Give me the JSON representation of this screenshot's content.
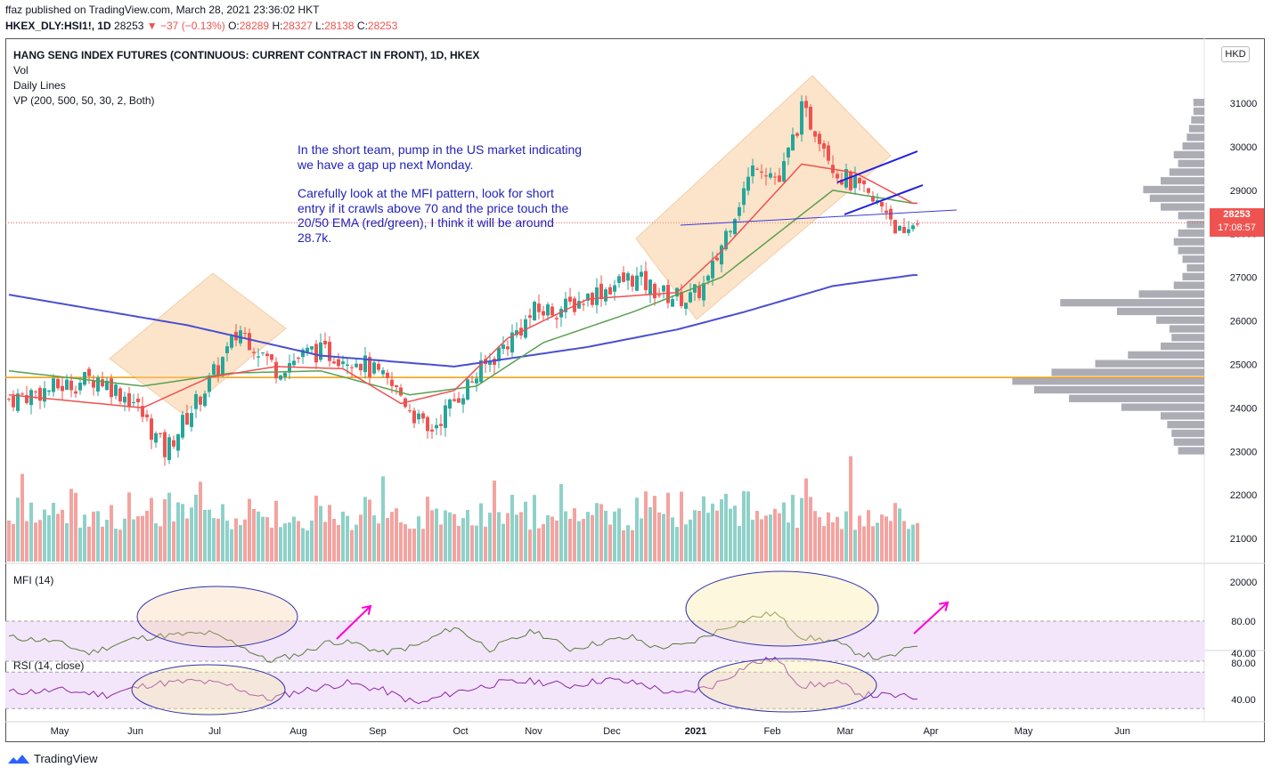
{
  "header": {
    "published": "ffaz published on TradingView.com, March 28, 2021 23:36:02 HKT",
    "symbol": "HKEX_DLY:HSI1!, 1D",
    "last": "28253",
    "change": "−37 (−0.13%)",
    "open_label": "O:",
    "open": "28289",
    "high_label": "H:",
    "high": "28327",
    "low_label": "L:",
    "low": "28138",
    "close_label": "C:",
    "close": "28253"
  },
  "legend": {
    "title": "HANG SENG INDEX FUTURES (CONTINUOUS: CURRENT CONTRACT IN FRONT), 1D, HKEX",
    "vol": "Vol",
    "lines": "Daily Lines",
    "vp": "VP (200, 500, 50, 30, 2, Both)"
  },
  "annotation": {
    "p1": "In the short team, pump in the US market indicating we have a gap up next Monday.",
    "p2": "Carefully look at the MFI pattern, look for short entry if it crawls above 70 and the price touch the 20/50 EMA (red/green), I think it will be around 28.7k."
  },
  "currency": "HKD",
  "price_label": {
    "price": "28253",
    "countdown": "17:08:57"
  },
  "colors": {
    "up": "#26a69a",
    "down": "#ef5350",
    "ema20": "#f05050",
    "ema50": "#5aa050",
    "ema200": "#4a4fd0",
    "poc": "#f79a00",
    "annot": "#2323b8"
  },
  "footer": {
    "brand": "TradingView"
  },
  "chart_data": [
    {
      "type": "candlestick",
      "title": "HANG SENG INDEX FUTURES (CONTINUOUS: CURRENT CONTRACT IN FRONT), 1D, HKEX",
      "ylim": [
        20000,
        32000
      ],
      "y_ticks": [
        20000,
        21000,
        22000,
        23000,
        24000,
        25000,
        26000,
        27000,
        28000,
        29000,
        30000,
        31000,
        32000
      ],
      "x_ticks": [
        "May",
        "Jun",
        "Jul",
        "Aug",
        "Sep",
        "Oct",
        "Nov",
        "Dec",
        "2021",
        "Feb",
        "Mar",
        "Apr",
        "May",
        "Jun"
      ],
      "close_path": [
        [
          0,
          24200
        ],
        [
          10,
          24450
        ],
        [
          20,
          24700
        ],
        [
          28,
          24150
        ],
        [
          35,
          23000
        ],
        [
          45,
          24600
        ],
        [
          52,
          25800
        ],
        [
          60,
          24900
        ],
        [
          68,
          25300
        ],
        [
          78,
          25150
        ],
        [
          88,
          24300
        ],
        [
          94,
          23400
        ],
        [
          101,
          24300
        ],
        [
          110,
          25300
        ],
        [
          118,
          26200
        ],
        [
          125,
          26300
        ],
        [
          133,
          26700
        ],
        [
          140,
          27000
        ],
        [
          147,
          26600
        ],
        [
          153,
          26500
        ],
        [
          157,
          26900
        ],
        [
          162,
          28300
        ],
        [
          168,
          29700
        ],
        [
          173,
          29200
        ],
        [
          178,
          30800
        ],
        [
          182,
          30300
        ],
        [
          186,
          29400
        ],
        [
          190,
          29100
        ],
        [
          194,
          28700
        ],
        [
          197,
          28600
        ],
        [
          201,
          27800
        ],
        [
          203,
          28253
        ]
      ],
      "ema20_path": [
        [
          0,
          24300
        ],
        [
          30,
          24000
        ],
        [
          45,
          24700
        ],
        [
          60,
          24950
        ],
        [
          75,
          24900
        ],
        [
          88,
          24100
        ],
        [
          100,
          24400
        ],
        [
          112,
          25600
        ],
        [
          130,
          26500
        ],
        [
          150,
          26650
        ],
        [
          160,
          27600
        ],
        [
          178,
          29600
        ],
        [
          190,
          29400
        ],
        [
          203,
          28700
        ]
      ],
      "ema50_path": [
        [
          0,
          24850
        ],
        [
          30,
          24500
        ],
        [
          50,
          24800
        ],
        [
          70,
          24850
        ],
        [
          90,
          24300
        ],
        [
          105,
          24500
        ],
        [
          120,
          25500
        ],
        [
          140,
          26200
        ],
        [
          160,
          27000
        ],
        [
          185,
          29000
        ],
        [
          203,
          28700
        ]
      ],
      "ema200_path": [
        [
          0,
          26600
        ],
        [
          40,
          25900
        ],
        [
          70,
          25200
        ],
        [
          100,
          24950
        ],
        [
          130,
          25400
        ],
        [
          150,
          25800
        ],
        [
          165,
          26200
        ],
        [
          185,
          26800
        ],
        [
          203,
          27050
        ]
      ],
      "poc": 24700,
      "volume_profile": [
        [
          23000,
          0.12
        ],
        [
          23200,
          0.14
        ],
        [
          23400,
          0.15
        ],
        [
          23600,
          0.17
        ],
        [
          23800,
          0.2
        ],
        [
          24000,
          0.38
        ],
        [
          24200,
          0.62
        ],
        [
          24400,
          0.78
        ],
        [
          24600,
          0.88
        ],
        [
          24800,
          0.7
        ],
        [
          25000,
          0.5
        ],
        [
          25200,
          0.35
        ],
        [
          25400,
          0.2
        ],
        [
          25600,
          0.15
        ],
        [
          25800,
          0.16
        ],
        [
          26000,
          0.22
        ],
        [
          26200,
          0.4
        ],
        [
          26400,
          0.66
        ],
        [
          26600,
          0.3
        ],
        [
          26800,
          0.14
        ],
        [
          27000,
          0.1
        ],
        [
          27200,
          0.08
        ],
        [
          27400,
          0.1
        ],
        [
          27600,
          0.12
        ],
        [
          27800,
          0.14
        ],
        [
          28000,
          0.12
        ],
        [
          28200,
          0.08
        ],
        [
          28400,
          0.12
        ],
        [
          28600,
          0.2
        ],
        [
          28800,
          0.25
        ],
        [
          29000,
          0.28
        ],
        [
          29200,
          0.2
        ],
        [
          29400,
          0.16
        ],
        [
          29600,
          0.12
        ],
        [
          29800,
          0.14
        ],
        [
          30000,
          0.1
        ],
        [
          30200,
          0.08
        ],
        [
          30400,
          0.07
        ],
        [
          30600,
          0.06
        ],
        [
          30800,
          0.05
        ],
        [
          31000,
          0.05
        ]
      ],
      "last_price": 28253
    },
    {
      "type": "line",
      "title": "MFI (14)",
      "ylim": [
        20,
        100
      ],
      "y_ticks": [
        40,
        80
      ],
      "bands": [
        30,
        80
      ],
      "values_path": [
        [
          0,
          60
        ],
        [
          10,
          55
        ],
        [
          18,
          40
        ],
        [
          28,
          58
        ],
        [
          35,
          62
        ],
        [
          45,
          65
        ],
        [
          52,
          50
        ],
        [
          58,
          30
        ],
        [
          66,
          40
        ],
        [
          72,
          55
        ],
        [
          78,
          52
        ],
        [
          84,
          40
        ],
        [
          92,
          50
        ],
        [
          100,
          73
        ],
        [
          108,
          45
        ],
        [
          118,
          68
        ],
        [
          126,
          45
        ],
        [
          134,
          55
        ],
        [
          140,
          60
        ],
        [
          145,
          47
        ],
        [
          152,
          50
        ],
        [
          162,
          75
        ],
        [
          168,
          86
        ],
        [
          172,
          90
        ],
        [
          178,
          60
        ],
        [
          185,
          55
        ],
        [
          190,
          42
        ],
        [
          196,
          32
        ],
        [
          200,
          40
        ],
        [
          203,
          50
        ]
      ]
    },
    {
      "type": "line",
      "title": "RSI (14, close)",
      "ylim": [
        30,
        90
      ],
      "y_ticks": [
        40,
        80
      ],
      "bands": [
        30,
        70
      ],
      "values_path": [
        [
          0,
          48
        ],
        [
          12,
          50
        ],
        [
          22,
          45
        ],
        [
          32,
          57
        ],
        [
          42,
          60
        ],
        [
          50,
          55
        ],
        [
          58,
          40
        ],
        [
          66,
          50
        ],
        [
          76,
          58
        ],
        [
          84,
          50
        ],
        [
          92,
          35
        ],
        [
          100,
          48
        ],
        [
          110,
          58
        ],
        [
          118,
          60
        ],
        [
          126,
          55
        ],
        [
          134,
          62
        ],
        [
          142,
          57
        ],
        [
          150,
          45
        ],
        [
          158,
          55
        ],
        [
          166,
          78
        ],
        [
          172,
          85
        ],
        [
          178,
          55
        ],
        [
          186,
          58
        ],
        [
          192,
          45
        ],
        [
          198,
          44
        ],
        [
          203,
          42
        ]
      ]
    }
  ]
}
